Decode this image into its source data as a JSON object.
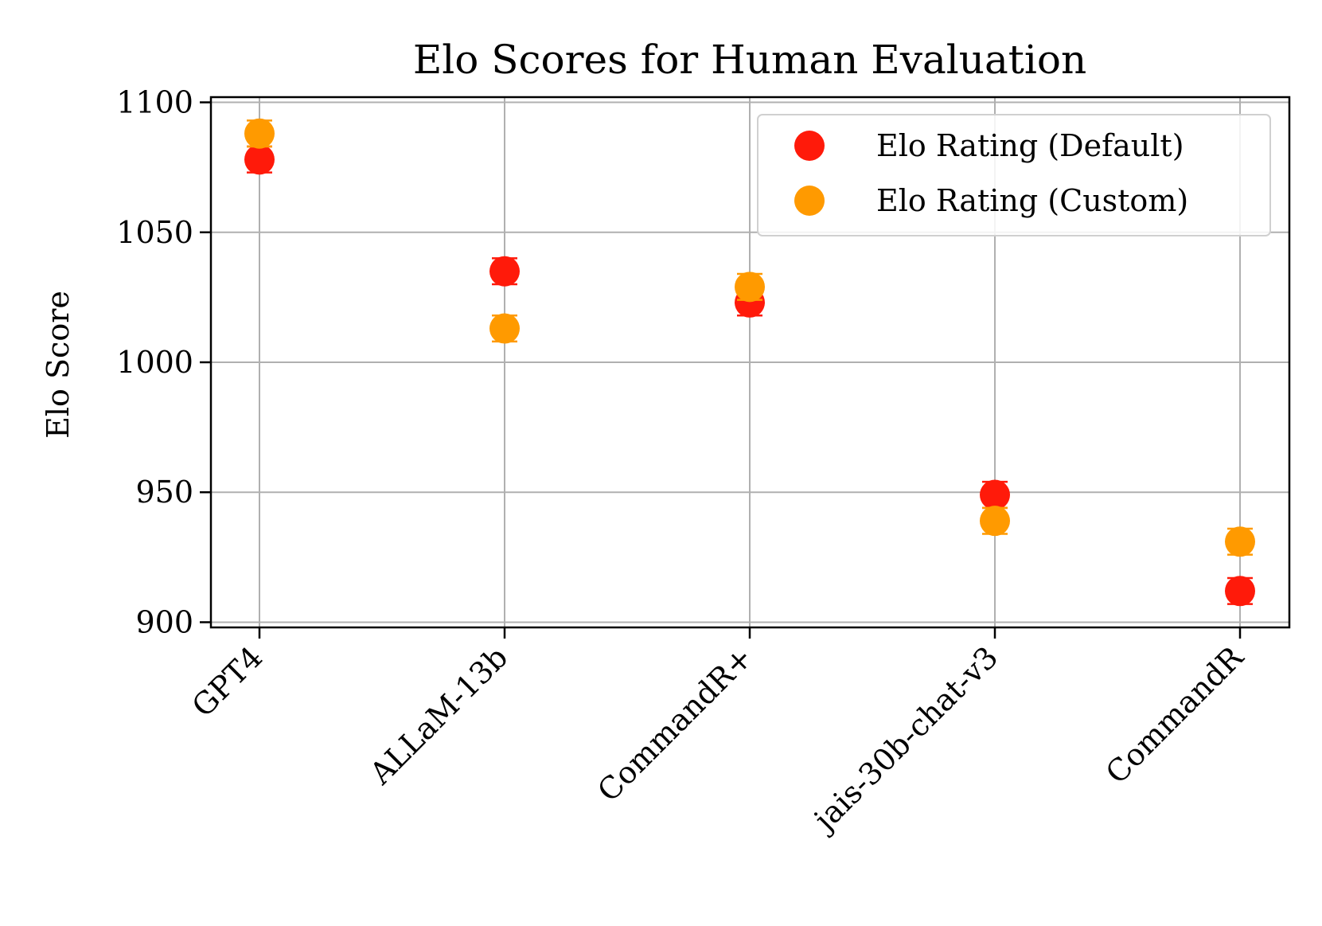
{
  "chart_data": {
    "type": "scatter",
    "title": "Elo Scores for Human Evaluation",
    "xlabel": "",
    "ylabel": "Elo Score",
    "categories": [
      "GPT4",
      "ALLaM-13b",
      "CommandR+",
      "jais-30b-chat-v3",
      "CommandR"
    ],
    "ylim": [
      898,
      1102
    ],
    "yticks": [
      900,
      950,
      1000,
      1050,
      1100
    ],
    "grid": true,
    "legend_position": "top-right",
    "series": [
      {
        "name": "Elo Rating (Default)",
        "color": "#ff1a0a",
        "values": [
          1078,
          1035,
          1023,
          949,
          912
        ],
        "errors": [
          5,
          5,
          5,
          5,
          5
        ]
      },
      {
        "name": "Elo Rating (Custom)",
        "color": "#ff9a00",
        "values": [
          1088,
          1013,
          1029,
          939,
          931
        ],
        "errors": [
          5,
          5,
          5,
          5,
          5
        ]
      }
    ]
  }
}
